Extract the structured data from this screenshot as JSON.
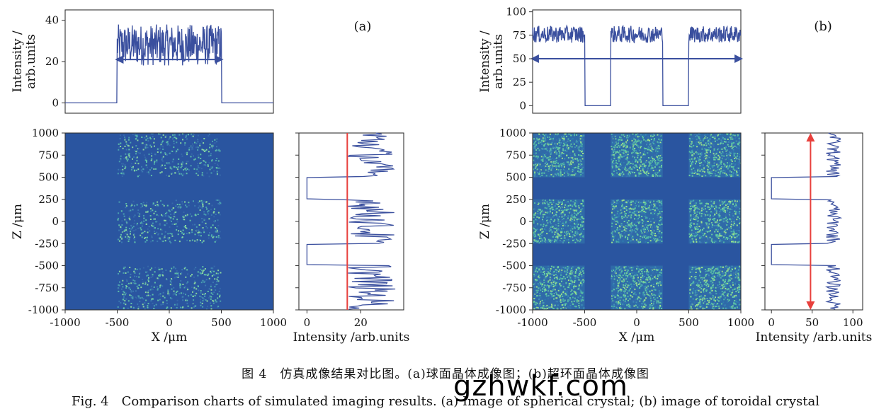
{
  "chart_data": [
    {
      "id": "a-top",
      "type": "line",
      "xlim": [
        -1000,
        1000
      ],
      "ylim": [
        -5,
        45
      ],
      "yticks": [
        0,
        20,
        40
      ],
      "ylabel_line1": "Intensity /",
      "ylabel_line2": "arb.units",
      "panel_label": "(a)",
      "series_color": "#3a4f9e",
      "profile_regions": [
        {
          "x0": -500,
          "x1": 500,
          "mean": 28,
          "spread": 10
        }
      ],
      "profile_baseline": 0,
      "arrow": {
        "x0": -480,
        "x1": 480,
        "y": 21
      }
    },
    {
      "id": "a-image",
      "type": "heatmap",
      "xlim": [
        -1000,
        1000
      ],
      "ylim": [
        -1000,
        1000
      ],
      "xticks": [
        -1000,
        -500,
        0,
        500,
        1000
      ],
      "yticks": [
        1000,
        750,
        500,
        250,
        0,
        -250,
        -500,
        -750,
        -1000
      ],
      "xlabel": "X /μm",
      "ylabel": "Z /μm",
      "background": "#2a55a0",
      "bright_regions": [
        {
          "x0": -500,
          "x1": 500,
          "z0": 500,
          "z1": 1000
        },
        {
          "x0": -500,
          "x1": 500,
          "z0": -250,
          "z1": 250
        },
        {
          "x0": -500,
          "x1": 500,
          "z0": -1000,
          "z1": -500
        }
      ],
      "density": "sparse"
    },
    {
      "id": "a-side",
      "type": "line",
      "xlim": [
        -3,
        36
      ],
      "ylim": [
        -1000,
        1000
      ],
      "xticks": [
        0,
        20
      ],
      "xlabel": "Intensity /arb.units",
      "series_color": "#3a4f9e",
      "profile_regions": [
        {
          "z0": 500,
          "z1": 1000,
          "mean": 24,
          "spread": 9
        },
        {
          "z0": -250,
          "z1": 250,
          "mean": 24,
          "spread": 9
        },
        {
          "z0": -1000,
          "z1": -500,
          "mean": 24,
          "spread": 9
        }
      ],
      "profile_baseline": 0,
      "marker_line": {
        "x": 15,
        "color": "#e8403c"
      }
    },
    {
      "id": "b-top",
      "type": "line",
      "xlim": [
        -1000,
        1000
      ],
      "ylim": [
        -8,
        102
      ],
      "yticks": [
        0,
        25,
        50,
        75,
        100
      ],
      "ylabel_line1": "Intensity /",
      "ylabel_line2": "arb.units",
      "panel_label": "(b)",
      "series_color": "#3a4f9e",
      "profile_regions": [
        {
          "x0": -1000,
          "x1": -500,
          "mean": 76,
          "spread": 9
        },
        {
          "x0": -250,
          "x1": 250,
          "mean": 76,
          "spread": 9
        },
        {
          "x0": 500,
          "x1": 1000,
          "mean": 76,
          "spread": 9
        }
      ],
      "profile_baseline": 0,
      "arrow": {
        "x0": -980,
        "x1": 980,
        "y": 50
      }
    },
    {
      "id": "b-image",
      "type": "heatmap",
      "xlim": [
        -1000,
        1000
      ],
      "ylim": [
        -1000,
        1000
      ],
      "xticks": [
        -1000,
        -500,
        0,
        500,
        1000
      ],
      "yticks": [
        1000,
        750,
        500,
        250,
        0,
        -250,
        -500,
        -750,
        -1000
      ],
      "xlabel": "X /μm",
      "ylabel": "Z /μm",
      "background": "#2a55a0",
      "bright_regions": [
        {
          "x0": -1000,
          "x1": -500,
          "z0": 500,
          "z1": 1000
        },
        {
          "x0": -250,
          "x1": 250,
          "z0": 500,
          "z1": 1000
        },
        {
          "x0": 500,
          "x1": 1000,
          "z0": 500,
          "z1": 1000
        },
        {
          "x0": -1000,
          "x1": -500,
          "z0": -250,
          "z1": 250
        },
        {
          "x0": -250,
          "x1": 250,
          "z0": -250,
          "z1": 250
        },
        {
          "x0": 500,
          "x1": 1000,
          "z0": -250,
          "z1": 250
        },
        {
          "x0": -1000,
          "x1": -500,
          "z0": -1000,
          "z1": -500
        },
        {
          "x0": -250,
          "x1": 250,
          "z0": -1000,
          "z1": -500
        },
        {
          "x0": 500,
          "x1": 1000,
          "z0": -1000,
          "z1": -500
        }
      ],
      "density": "dense"
    },
    {
      "id": "b-side",
      "type": "line",
      "xlim": [
        -8,
        112
      ],
      "ylim": [
        -1000,
        1000
      ],
      "xticks": [
        0,
        50,
        100
      ],
      "xlabel": "Intensity /arb.units",
      "series_color": "#3a4f9e",
      "profile_regions": [
        {
          "z0": 500,
          "z1": 1000,
          "mean": 76,
          "spread": 9
        },
        {
          "z0": -250,
          "z1": 250,
          "mean": 76,
          "spread": 9
        },
        {
          "z0": -1000,
          "z1": -500,
          "mean": 76,
          "spread": 9
        }
      ],
      "profile_baseline": 0,
      "arrow_vertical": {
        "x": 48,
        "color": "#e8403c"
      }
    }
  ],
  "caption": {
    "chinese": "图 4　仿真成像结果对比图。(a)球面晶体成像图；(b)超环面晶体成像图",
    "english": "Fig. 4　Comparison charts of simulated imaging results. (a) Image of spherical crystal; (b) image of toroidal crystal"
  },
  "watermark": "gzhwkf.com"
}
